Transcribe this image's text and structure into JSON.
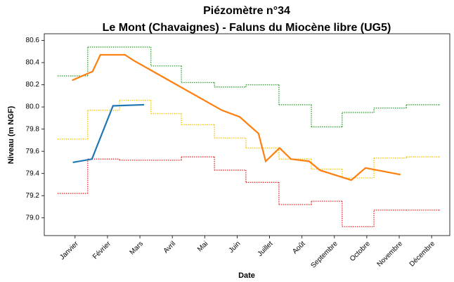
{
  "chart_data": {
    "type": "line",
    "title": [
      "Piézomètre n°34",
      "Le Mont (Chavaignes) - Faluns du Miocène libre (UG5)"
    ],
    "xlabel": "Date",
    "ylabel": "Niveau (m NGF)",
    "xlim": [
      -0.95,
      11.56
    ],
    "xticks": [
      {
        "value": 0,
        "label": "Janvier"
      },
      {
        "value": 1,
        "label": "Février"
      },
      {
        "value": 2,
        "label": "Mars"
      },
      {
        "value": 3,
        "label": "Avril"
      },
      {
        "value": 4,
        "label": "Mai"
      },
      {
        "value": 5,
        "label": "Juin"
      },
      {
        "value": 6,
        "label": "Juillet"
      },
      {
        "value": 7,
        "label": "Août"
      },
      {
        "value": 8,
        "label": "Septembre"
      },
      {
        "value": 9,
        "label": "Octobre"
      },
      {
        "value": 10,
        "label": "Novembre"
      },
      {
        "value": 11,
        "label": "Décembre"
      }
    ],
    "ylim": [
      78.84,
      80.66
    ],
    "yticks": [
      {
        "value": 79,
        "label": "79.0"
      },
      79.2,
      79.4,
      79.6,
      79.8,
      {
        "value": 80,
        "label": "80.0"
      },
      80.2,
      80.4,
      80.6
    ],
    "series": [
      {
        "color": "#2ca02c",
        "style": "steps-post",
        "dotted": true,
        "x": [
          -0.54,
          0.39,
          2.34,
          3.28,
          4.3,
          5.27,
          6.29,
          7.29,
          8.24,
          9.22,
          10.22,
          11.24
        ],
        "values": [
          80.28,
          80.54,
          80.37,
          80.22,
          80.18,
          80.2,
          80.02,
          79.82,
          79.95,
          79.99,
          80.02,
          80.02
        ]
      },
      {
        "color": "#f2c500",
        "style": "steps-post",
        "dotted": true,
        "x": [
          -0.54,
          0.39,
          1.37,
          2.34,
          3.28,
          4.3,
          5.27,
          6.29,
          7.29,
          8.24,
          9.22,
          10.22,
          11.24
        ],
        "values": [
          79.71,
          79.97,
          80.06,
          79.94,
          79.84,
          79.72,
          79.63,
          79.53,
          79.44,
          79.36,
          79.54,
          79.55,
          79.55
        ]
      },
      {
        "color": "#e8292b",
        "style": "steps-post",
        "dotted": true,
        "x": [
          -0.54,
          0.39,
          1.37,
          3.28,
          4.3,
          5.27,
          6.29,
          7.29,
          8.24,
          9.22,
          10.22,
          11.24
        ],
        "values": [
          79.22,
          79.53,
          79.52,
          79.55,
          79.43,
          79.32,
          79.12,
          79.15,
          78.92,
          79.07,
          79.07,
          79.07
        ]
      },
      {
        "color": "#ff7f0e",
        "style": "line",
        "dotted": false,
        "x": [
          -0.09,
          0.54,
          0.78,
          1.54,
          1.8,
          4.53,
          5.08,
          5.66,
          5.88,
          6.31,
          6.66,
          7.22,
          7.55,
          8.52,
          8.96,
          10.04
        ],
        "values": [
          80.24,
          80.32,
          80.47,
          80.47,
          80.42,
          79.97,
          79.91,
          79.76,
          79.51,
          79.63,
          79.53,
          79.51,
          79.43,
          79.34,
          79.45,
          79.39
        ]
      },
      {
        "color": "#1f77b4",
        "style": "line",
        "dotted": false,
        "x": [
          -0.07,
          0.52,
          1.17,
          2.13
        ],
        "values": [
          79.5,
          79.53,
          80.01,
          80.02
        ]
      }
    ]
  }
}
